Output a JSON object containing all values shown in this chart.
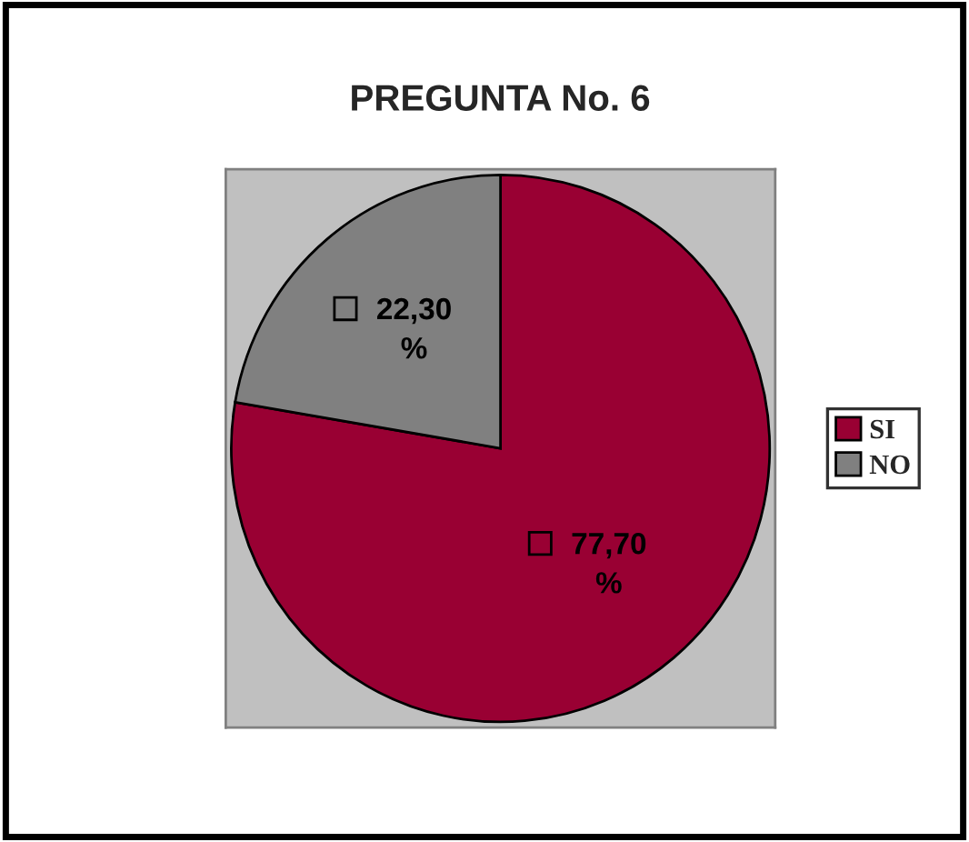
{
  "chart_data": {
    "type": "pie",
    "title": "PREGUNTA No. 6",
    "categories": [
      "SI",
      "NO"
    ],
    "values": [
      77.7,
      22.3
    ],
    "colors": [
      "#990033",
      "#808080"
    ],
    "value_labels": [
      "77,70 %",
      "22,30 %"
    ],
    "legend": "right"
  }
}
